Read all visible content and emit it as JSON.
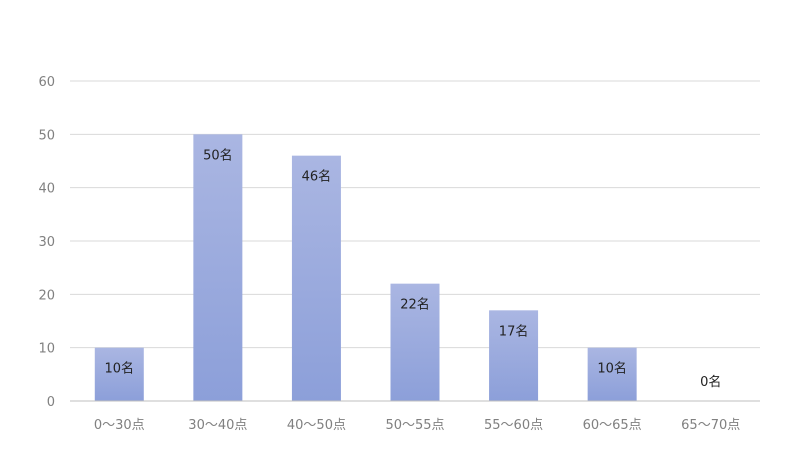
{
  "chart_data": {
    "type": "bar",
    "categories": [
      "0〜30点",
      "30〜40点",
      "40〜50点",
      "50〜55点",
      "55〜60点",
      "60〜65点",
      "65〜70点"
    ],
    "values": [
      10,
      50,
      46,
      22,
      17,
      10,
      0
    ],
    "data_labels": [
      "10名",
      "50名",
      "46名",
      "22名",
      "17名",
      "10名",
      "0名"
    ],
    "yticks": [
      "0",
      "10",
      "20",
      "30",
      "40",
      "50",
      "60"
    ],
    "ylim": [
      0,
      60
    ],
    "grid": true,
    "bar_color_top": "#aab6e2",
    "bar_color_bottom": "#8c9fd9"
  }
}
